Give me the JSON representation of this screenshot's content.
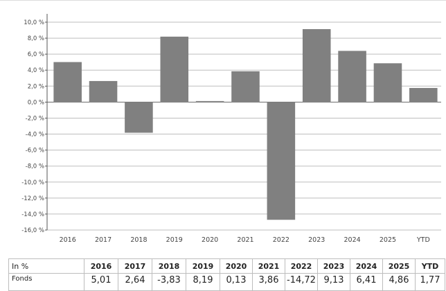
{
  "chart_data": {
    "type": "bar",
    "categories": [
      "2016",
      "2017",
      "2018",
      "2019",
      "2020",
      "2021",
      "2022",
      "2023",
      "2024",
      "2025",
      "YTD"
    ],
    "series": [
      {
        "values": [
          5.01,
          2.64,
          -3.83,
          8.19,
          0.13,
          3.86,
          -14.72,
          9.13,
          6.41,
          4.86,
          1.77
        ]
      }
    ],
    "ylim": [
      -16,
      10
    ],
    "yticks": [
      "10,0 %",
      "8,0 %",
      "6,0 %",
      "4,0 %",
      "2,0 %",
      "0,0 %",
      "-2,0 %",
      "-4,0 %",
      "-6,0 %",
      "-8,0 %",
      "-10,0 %",
      "-12,0 %",
      "-14,0 %",
      "-16,0 %"
    ],
    "ytick_values": [
      10,
      8,
      6,
      4,
      2,
      0,
      -2,
      -4,
      -6,
      -8,
      -10,
      -12,
      -14,
      -16
    ],
    "grid": true,
    "bar_color": "#808080"
  },
  "table": {
    "header_label": "In %",
    "row_label": "Fonds",
    "columns": [
      "2016",
      "2017",
      "2018",
      "2019",
      "2020",
      "2021",
      "2022",
      "2023",
      "2024",
      "2025",
      "YTD"
    ],
    "values": [
      "5,01",
      "2,64",
      "-3,83",
      "8,19",
      "0,13",
      "3,86",
      "-14,72",
      "9,13",
      "6,41",
      "4,86",
      "1,77"
    ]
  }
}
